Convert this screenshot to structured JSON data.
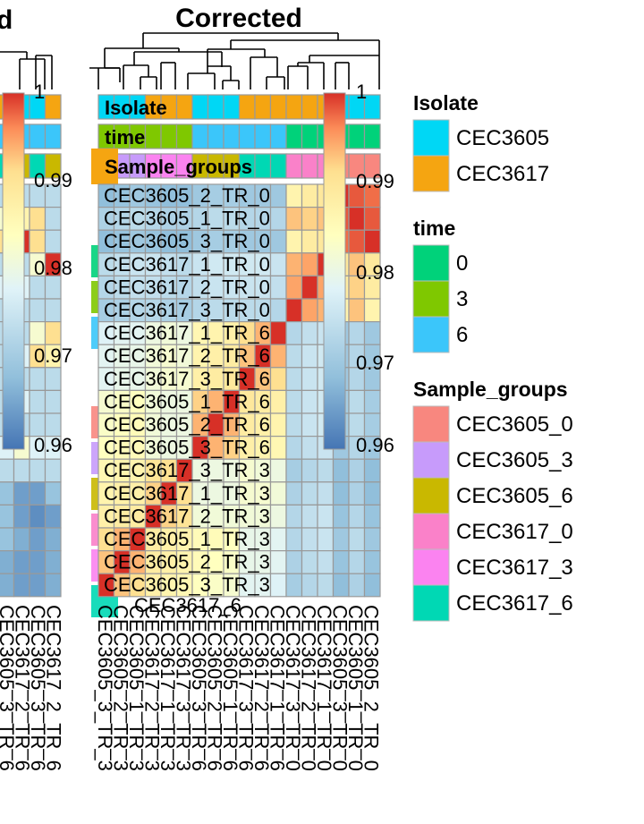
{
  "panel_titles": {
    "left": "d",
    "right": "Corrected"
  },
  "colorbar_ticks": [
    "1",
    "0.99",
    "0.98",
    "0.97",
    "0.96"
  ],
  "annotation_bars": [
    "Isolate",
    "time",
    "Sample_groups"
  ],
  "legend": {
    "isolate": {
      "title": "Isolate",
      "items": [
        {
          "label": "CEC3605",
          "color": "#00D7F5"
        },
        {
          "label": "CEC3617",
          "color": "#F5A511"
        }
      ]
    },
    "time": {
      "title": "time",
      "items": [
        {
          "label": "0",
          "color": "#00D27A"
        },
        {
          "label": "3",
          "color": "#7FC800"
        },
        {
          "label": "6",
          "color": "#3BC6FA"
        }
      ]
    },
    "sample_groups": {
      "title": "Sample_groups",
      "items": [
        {
          "label": "CEC3605_0",
          "color": "#F8877F"
        },
        {
          "label": "CEC3605_3",
          "color": "#C79BFB"
        },
        {
          "label": "CEC3605_6",
          "color": "#C9B800"
        },
        {
          "label": "CEC3617_0",
          "color": "#FA81C9"
        },
        {
          "label": "CEC3617_3",
          "color": "#FB83F0"
        },
        {
          "label": "CEC3617_6",
          "color": "#00D8B4"
        }
      ]
    }
  },
  "colors": {
    "scale_top": "#D73027",
    "scale_mid": "#FFFFBF",
    "scale_bottom": "#4575B4",
    "grid": "#999999"
  },
  "chart_data": {
    "type": "heatmap",
    "title": "Corrected",
    "value_range": [
      0.955,
      1.0
    ],
    "row_labels": [
      "CEC3605_2_TR_0",
      "CEC3605_1_TR_0",
      "CEC3605_3_TR_0",
      "CEC3617_1_TR_0",
      "CEC3617_2_TR_0",
      "CEC3617_3_TR_0",
      "CEC3617_1_TR_6",
      "CEC3617_2_TR_6",
      "CEC3617_3_TR_6",
      "CEC3605_1_TR_6",
      "CEC3605_2_TR_6",
      "CEC3605_3_TR_6",
      "CEC3617_3_TR_3",
      "CEC3617_1_TR_3",
      "CEC3617_2_TR_3",
      "CEC3605_1_TR_3",
      "CEC3605_2_TR_3",
      "CEC3605_3_TR_3"
    ],
    "column_labels": [
      "CEC3605_3_TR_3",
      "CEC3605_2_TR_3",
      "CEC3605_1_TR_3",
      "CEC3617_2_TR_3",
      "CEC3617_1_TR_3",
      "CEC3617_3_TR_3",
      "CEC3605_3_TR_6",
      "CEC3605_2_TR_6",
      "CEC3605_1_TR_6",
      "CEC3617_3_TR_6",
      "CEC3617_2_TR_6",
      "CEC3617_1_TR_6",
      "CEC3617_3_TR_0",
      "CEC3617_2_TR_0",
      "CEC3617_1_TR_0",
      "CEC3605_3_TR_0",
      "CEC3605_1_TR_0",
      "CEC3605_2_TR_0"
    ],
    "column_isolate": [
      "CEC3605",
      "CEC3605",
      "CEC3605",
      "CEC3617",
      "CEC3617",
      "CEC3617",
      "CEC3605",
      "CEC3605",
      "CEC3605",
      "CEC3617",
      "CEC3617",
      "CEC3617",
      "CEC3617",
      "CEC3617",
      "CEC3617",
      "CEC3605",
      "CEC3605",
      "CEC3605"
    ],
    "column_time": [
      "3",
      "3",
      "3",
      "3",
      "3",
      "3",
      "6",
      "6",
      "6",
      "6",
      "6",
      "6",
      "0",
      "0",
      "0",
      "0",
      "0",
      "0"
    ],
    "column_group": [
      "CEC3605_3",
      "CEC3605_3",
      "CEC3605_3",
      "CEC3617_3",
      "CEC3617_3",
      "CEC3617_3",
      "CEC3605_6",
      "CEC3605_6",
      "CEC3605_6",
      "CEC3617_6",
      "CEC3617_6",
      "CEC3617_6",
      "CEC3617_0",
      "CEC3617_0",
      "CEC3617_0",
      "CEC3605_0",
      "CEC3605_0",
      "CEC3605_0"
    ],
    "row_group_values": [
      [
        0.964,
        0.965,
        0.966,
        0.965,
        0.964,
        0.964,
        0.966,
        0.967,
        0.967,
        0.966,
        0.966,
        0.966,
        0.985,
        0.987,
        0.988,
        1.0,
        0.998,
        0.997
      ],
      [
        0.968,
        0.969,
        0.97,
        0.969,
        0.968,
        0.968,
        0.969,
        0.97,
        0.97,
        0.969,
        0.969,
        0.969,
        0.992,
        0.991,
        0.992,
        0.998,
        1.0,
        0.998
      ],
      [
        0.964,
        0.965,
        0.966,
        0.965,
        0.964,
        0.964,
        0.966,
        0.967,
        0.967,
        0.966,
        0.966,
        0.966,
        0.985,
        0.987,
        0.988,
        0.997,
        0.998,
        1.0
      ],
      [
        0.97,
        0.971,
        0.972,
        0.972,
        0.971,
        0.97,
        0.972,
        0.973,
        0.973,
        0.973,
        0.973,
        0.972,
        0.993,
        0.994,
        1.0,
        0.988,
        0.992,
        0.988
      ],
      [
        0.969,
        0.97,
        0.971,
        0.971,
        0.97,
        0.969,
        0.971,
        0.972,
        0.972,
        0.972,
        0.972,
        0.971,
        0.994,
        1.0,
        0.994,
        0.987,
        0.991,
        0.987
      ],
      [
        0.967,
        0.968,
        0.969,
        0.969,
        0.968,
        0.967,
        0.969,
        0.97,
        0.97,
        0.97,
        0.97,
        0.969,
        1.0,
        0.994,
        0.993,
        0.985,
        0.992,
        0.985
      ],
      [
        0.975,
        0.976,
        0.976,
        0.978,
        0.979,
        0.978,
        0.984,
        0.985,
        0.986,
        0.99,
        0.993,
        1.0,
        0.969,
        0.971,
        0.972,
        0.966,
        0.969,
        0.966
      ],
      [
        0.976,
        0.977,
        0.977,
        0.979,
        0.98,
        0.979,
        0.985,
        0.986,
        0.987,
        0.992,
        1.0,
        0.993,
        0.97,
        0.972,
        0.973,
        0.966,
        0.969,
        0.966
      ],
      [
        0.976,
        0.977,
        0.977,
        0.979,
        0.98,
        0.98,
        0.986,
        0.987,
        0.988,
        1.0,
        0.992,
        0.99,
        0.97,
        0.972,
        0.973,
        0.966,
        0.969,
        0.966
      ],
      [
        0.98,
        0.981,
        0.982,
        0.979,
        0.978,
        0.978,
        0.991,
        0.993,
        1.0,
        0.988,
        0.987,
        0.986,
        0.97,
        0.972,
        0.973,
        0.967,
        0.97,
        0.967
      ],
      [
        0.981,
        0.982,
        0.983,
        0.979,
        0.978,
        0.978,
        0.993,
        1.0,
        0.993,
        0.987,
        0.986,
        0.985,
        0.97,
        0.972,
        0.973,
        0.967,
        0.97,
        0.967
      ],
      [
        0.982,
        0.983,
        0.983,
        0.979,
        0.978,
        0.978,
        1.0,
        0.993,
        0.991,
        0.986,
        0.985,
        0.984,
        0.969,
        0.971,
        0.972,
        0.966,
        0.969,
        0.966
      ],
      [
        0.984,
        0.985,
        0.985,
        0.989,
        0.99,
        1.0,
        0.978,
        0.978,
        0.978,
        0.98,
        0.979,
        0.978,
        0.967,
        0.969,
        0.97,
        0.964,
        0.968,
        0.964
      ],
      [
        0.985,
        0.986,
        0.986,
        0.991,
        1.0,
        0.99,
        0.978,
        0.978,
        0.978,
        0.98,
        0.98,
        0.979,
        0.968,
        0.97,
        0.971,
        0.964,
        0.968,
        0.964
      ],
      [
        0.986,
        0.987,
        0.987,
        1.0,
        0.991,
        0.989,
        0.979,
        0.979,
        0.979,
        0.979,
        0.979,
        0.978,
        0.969,
        0.971,
        0.972,
        0.965,
        0.969,
        0.965
      ],
      [
        0.99,
        0.993,
        1.0,
        0.987,
        0.986,
        0.985,
        0.983,
        0.983,
        0.982,
        0.977,
        0.977,
        0.976,
        0.969,
        0.971,
        0.972,
        0.966,
        0.97,
        0.966
      ],
      [
        0.992,
        1.0,
        0.993,
        0.987,
        0.986,
        0.985,
        0.983,
        0.982,
        0.981,
        0.977,
        0.977,
        0.976,
        0.968,
        0.97,
        0.971,
        0.965,
        0.969,
        0.965
      ],
      [
        1.0,
        0.992,
        0.99,
        0.986,
        0.985,
        0.984,
        0.982,
        0.981,
        0.98,
        0.976,
        0.976,
        0.975,
        0.967,
        0.969,
        0.97,
        0.964,
        0.968,
        0.964
      ]
    ],
    "left_panel_row_labels": [
      "CEC3605_3_TR_6",
      "CEC3617_2_TR_6"
    ],
    "left_panel_values": [
      [
        0.97,
        0.97,
        0.97,
        0.97
      ],
      [
        0.98,
        0.985,
        0.99,
        0.97
      ],
      [
        0.99,
        1.0,
        0.99,
        0.97
      ],
      [
        0.97,
        0.97,
        0.98,
        1.0
      ],
      [
        0.975,
        0.975,
        0.97,
        0.97
      ],
      [
        0.97,
        0.97,
        0.97,
        0.97
      ],
      [
        0.97,
        0.97,
        0.98,
        0.99
      ],
      [
        0.97,
        0.975,
        0.99,
        0.985
      ],
      [
        0.97,
        0.97,
        0.97,
        0.97
      ],
      [
        0.97,
        0.975,
        0.97,
        0.97
      ],
      [
        0.97,
        0.97,
        0.97,
        0.97
      ],
      [
        0.975,
        0.98,
        0.975,
        0.975
      ],
      [
        0.97,
        0.97,
        0.97,
        0.97
      ],
      [
        0.965,
        0.96,
        0.96,
        0.965
      ],
      [
        0.965,
        0.96,
        0.958,
        0.96
      ],
      [
        0.965,
        0.962,
        0.96,
        0.962
      ],
      [
        0.962,
        0.96,
        0.96,
        0.962
      ],
      [
        0.962,
        0.96,
        0.96,
        0.962
      ]
    ]
  }
}
